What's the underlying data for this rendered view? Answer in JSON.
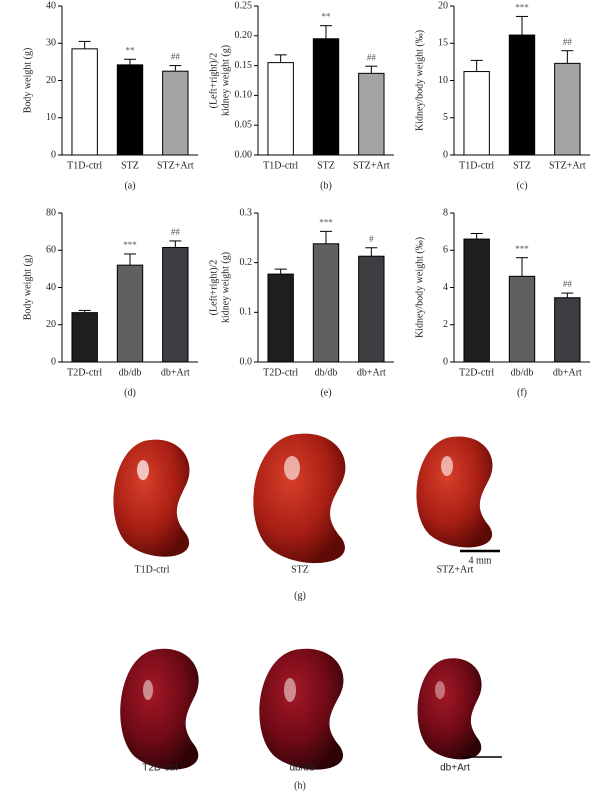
{
  "chart_data": [
    {
      "type": "bar",
      "panel": "(a)",
      "ylabel": [
        "Body weight (g)"
      ],
      "categories": [
        "T1D-ctrl",
        "STZ",
        "STZ+Art"
      ],
      "values": [
        28.5,
        24.2,
        22.5
      ],
      "errors": [
        2,
        1.5,
        1.5
      ],
      "annotations": [
        null,
        "**",
        "##"
      ],
      "colors": [
        "#ffffff",
        "#000000",
        "#a3a3a3"
      ],
      "ylim": [
        0,
        40
      ],
      "yticks": [
        0,
        10,
        20,
        30,
        40
      ]
    },
    {
      "type": "bar",
      "panel": "(b)",
      "ylabel": [
        "(Left+right)/2",
        "kidney weight (g)"
      ],
      "categories": [
        "T1D-ctrl",
        "STZ",
        "STZ+Art"
      ],
      "values": [
        0.155,
        0.195,
        0.137
      ],
      "errors": [
        0.013,
        0.022,
        0.012
      ],
      "annotations": [
        null,
        "**",
        "##"
      ],
      "colors": [
        "#ffffff",
        "#000000",
        "#a3a3a3"
      ],
      "ylim": [
        0,
        0.25
      ],
      "yticks": [
        {
          "value": 0,
          "label": "0.00"
        },
        {
          "value": 0.05,
          "label": "0.05"
        },
        {
          "value": 0.1,
          "label": "0.10"
        },
        {
          "value": 0.15,
          "label": "0.15"
        },
        {
          "value": 0.2,
          "label": "0.20"
        },
        {
          "value": 0.25,
          "label": "0.25"
        }
      ]
    },
    {
      "type": "bar",
      "panel": "(c)",
      "ylabel": [
        "Kidney/body weight (‰)"
      ],
      "categories": [
        "T1D-ctrl",
        "STZ",
        "STZ+Art"
      ],
      "values": [
        11.2,
        16.1,
        12.3
      ],
      "errors": [
        1.5,
        2.5,
        1.7
      ],
      "annotations": [
        null,
        "***",
        "##"
      ],
      "colors": [
        "#ffffff",
        "#000000",
        "#a3a3a3"
      ],
      "ylim": [
        0,
        20
      ],
      "yticks": [
        0,
        5,
        10,
        15,
        20
      ]
    },
    {
      "type": "bar",
      "panel": "(d)",
      "ylabel": [
        "Body weight (g)"
      ],
      "categories": [
        "T2D-ctrl",
        "db/db",
        "db+Art"
      ],
      "values": [
        26.5,
        52,
        61.5
      ],
      "errors": [
        1.2,
        6,
        3.5
      ],
      "annotations": [
        null,
        "***",
        "##"
      ],
      "colors": [
        "#1e1e1e",
        "#5f6062",
        "#3d3e41"
      ],
      "ylim": [
        0,
        80
      ],
      "yticks": [
        0,
        20,
        40,
        60,
        80
      ]
    },
    {
      "type": "bar",
      "panel": "(e)",
      "ylabel": [
        "(Left+right)/2",
        "kidney weight (g)"
      ],
      "categories": [
        "T2D-ctrl",
        "db/db",
        "db+Art"
      ],
      "values": [
        0.177,
        0.238,
        0.213
      ],
      "errors": [
        0.01,
        0.025,
        0.017
      ],
      "annotations": [
        null,
        "***",
        "#"
      ],
      "colors": [
        "#1e1e1e",
        "#5f6062",
        "#3d3e41"
      ],
      "ylim": [
        0,
        0.3
      ],
      "yticks": [
        {
          "value": 0,
          "label": "0.0"
        },
        0.1,
        0.2,
        0.3
      ]
    },
    {
      "type": "bar",
      "panel": "(f)",
      "ylabel": [
        "Kidney/body weight (‰)"
      ],
      "categories": [
        "T2D-ctrl",
        "db/db",
        "db+Art"
      ],
      "values": [
        6.6,
        4.6,
        3.45
      ],
      "errors": [
        0.3,
        1.0,
        0.25
      ],
      "annotations": [
        null,
        "***",
        "##"
      ],
      "colors": [
        "#1e1e1e",
        "#5f6062",
        "#3d3e41"
      ],
      "ylim": [
        0,
        8
      ],
      "yticks": [
        0,
        2,
        4,
        6,
        8
      ]
    }
  ],
  "photos": {
    "g": {
      "panel": "(g)",
      "labels": [
        "T1D-ctrl",
        "STZ",
        "STZ+Art"
      ],
      "scale": "4 mm"
    },
    "h": {
      "panel": "(h)",
      "labels": [
        "T2D-ctrl",
        "db/db",
        "db+Art"
      ]
    }
  }
}
